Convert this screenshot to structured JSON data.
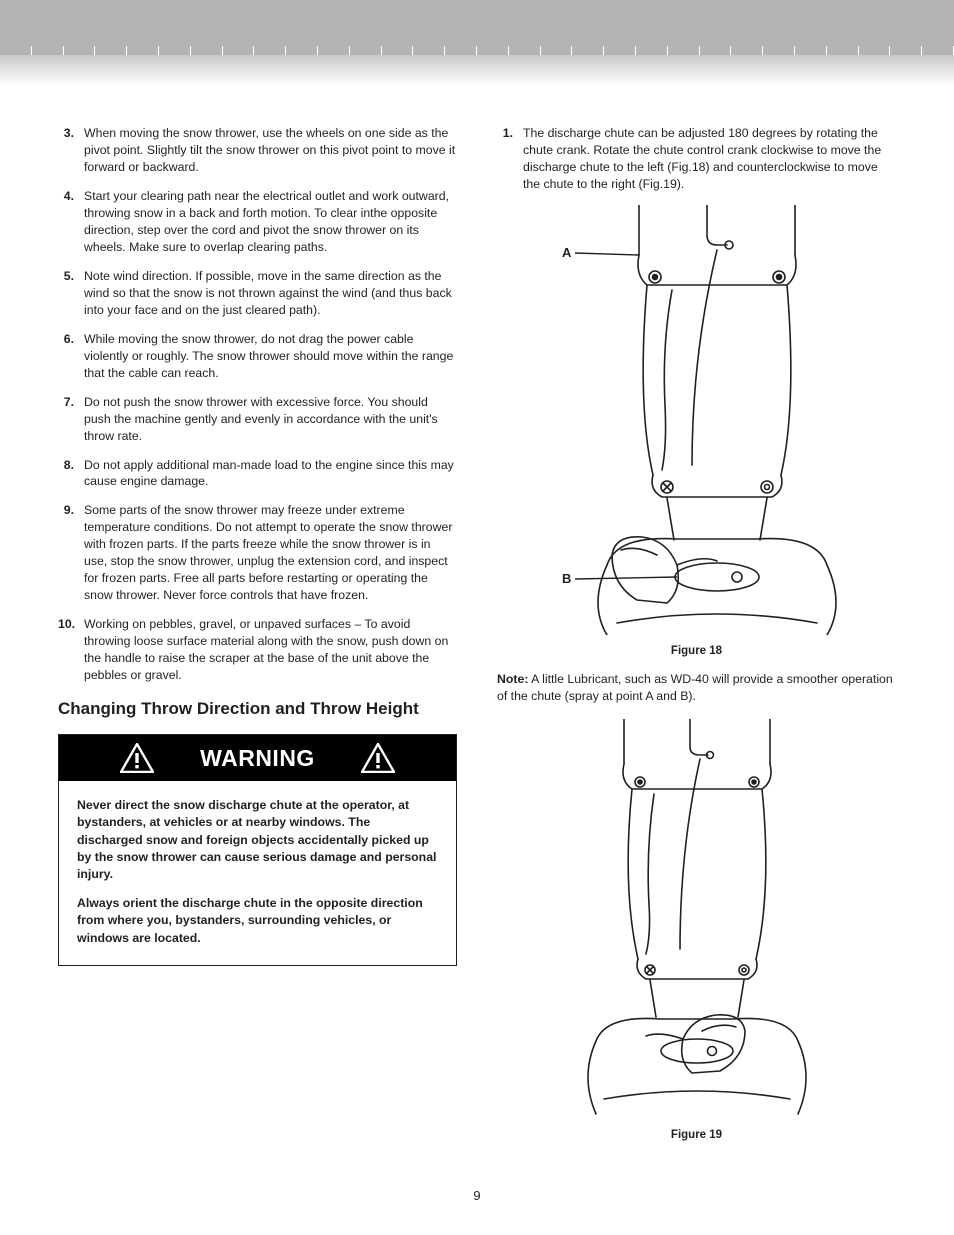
{
  "header": {
    "top_bar_color": "#b3b3b3",
    "gradient_cells": 30,
    "gradient_from": "#c8c8c8",
    "gradient_to": "#ffffff"
  },
  "left_column": {
    "list": [
      {
        "n": "3.",
        "text": "When moving the snow thrower, use the wheels on one side as the pivot point. Slightly tilt the snow thrower on this pivot point to move it forward or backward."
      },
      {
        "n": "4.",
        "text": "Start your clearing path near the electrical outlet and work outward, throwing snow in a back and forth motion. To clear inthe opposite direction, step over the cord and pivot the snow thrower on its wheels. Make sure to overlap clearing paths."
      },
      {
        "n": "5.",
        "text": "Note wind direction. If possible, move in the same direction as the wind so that the snow is not thrown against the wind (and thus back into your face and on the just cleared path)."
      },
      {
        "n": "6.",
        "text": "While moving the snow thrower, do not drag the power cable violently or roughly. The snow thrower should move within the range that the cable can reach."
      },
      {
        "n": "7.",
        "text": "Do not push the snow thrower with excessive force. You should push the machine gently and evenly in accordance with the unit's throw rate."
      },
      {
        "n": "8.",
        "text": "Do not apply additional man-made load to the engine since this may cause engine damage."
      },
      {
        "n": "9.",
        "text": "Some parts of the snow thrower may freeze under extreme temperature conditions. Do not attempt to operate the snow thrower with frozen parts. If the parts freeze while the snow thrower is in use, stop the snow thrower, unplug the extension cord, and inspect for frozen parts. Free all parts before restarting or operating the snow thrower. Never force controls that have frozen."
      },
      {
        "n": "10.",
        "text": "Working on pebbles, gravel, or unpaved surfaces – To avoid throwing loose surface material along with the snow, push down on the handle to raise the scraper at the base of the unit above the pebbles or gravel."
      }
    ],
    "section_heading": "Changing Throw Direction and Throw Height",
    "warning": {
      "label": "WARNING",
      "p1": "Never direct the snow discharge chute at the operator, at bystanders, at vehicles or at nearby windows. The discharged snow and foreign objects accidentally picked up by the snow thrower can cause serious damage and personal injury.",
      "p2": "Always orient the discharge chute in the opposite direction from where you, bystanders, surrounding vehicles, or windows are located."
    }
  },
  "right_column": {
    "list": [
      {
        "n": "1.",
        "text": "The discharge chute can be adjusted 180 degrees by rotating the chute crank. Rotate the chute control crank clockwise to move the discharge chute to the left (Fig.18) and counterclockwise to move the chute to the right (Fig.19)."
      }
    ],
    "figure18": {
      "label_a": "A",
      "label_b": "B",
      "caption": "Figure 18"
    },
    "note": {
      "prefix": "Note:",
      "text": " A little Lubricant, such as WD-40 will provide a smoother operation of the chute (spray at point A and B)."
    },
    "figure19": {
      "caption": "Figure 19"
    }
  },
  "page_number": "9",
  "colors": {
    "text": "#231f20",
    "warning_bg": "#000000",
    "warning_fg": "#ffffff",
    "stroke": "#231f20"
  }
}
